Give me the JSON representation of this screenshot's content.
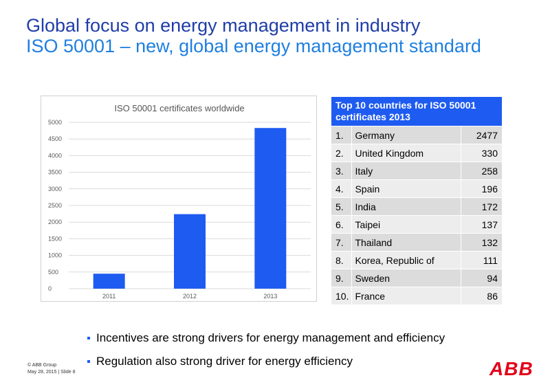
{
  "slide": {
    "title_line1": "Global focus on energy management in industry",
    "title_line2": "ISO 50001 – new, global energy management standard",
    "bullets": [
      "Incentives are strong drivers for energy management and efficiency",
      "Regulation also strong driver for energy efficiency"
    ],
    "footer_copyright": "© ABB Group",
    "footer_date": "May 28, 2015 | Slide 8",
    "logo_text": "ABB"
  },
  "colors": {
    "title_dark": "#1F3DA8",
    "title_light": "#1F7FE0",
    "bar": "#1E5BF0",
    "table_header": "#1E5BF0",
    "logo": "#E2001A"
  },
  "table": {
    "header": "Top 10 countries for ISO 50001 certificates 2013",
    "rows": [
      {
        "rank": "1.",
        "country": "Germany",
        "value": "2477"
      },
      {
        "rank": "2.",
        "country": "United Kingdom",
        "value": "330"
      },
      {
        "rank": "3.",
        "country": "Italy",
        "value": "258"
      },
      {
        "rank": "4.",
        "country": "Spain",
        "value": "196"
      },
      {
        "rank": "5.",
        "country": "India",
        "value": "172"
      },
      {
        "rank": "6.",
        "country": "Taipei",
        "value": "137"
      },
      {
        "rank": "7.",
        "country": "Thailand",
        "value": "132"
      },
      {
        "rank": "8.",
        "country": "Korea, Republic of",
        "value": "111"
      },
      {
        "rank": "9.",
        "country": "Sweden",
        "value": "94"
      },
      {
        "rank": "10.",
        "country": "France",
        "value": "86"
      }
    ]
  },
  "chart_data": {
    "type": "bar",
    "title": "ISO 50001 certificates worldwide",
    "categories": [
      "2011",
      "2012",
      "2013"
    ],
    "values": [
      450,
      2240,
      4830
    ],
    "ylim": [
      0,
      5000
    ],
    "yticks": [
      0,
      500,
      1000,
      1500,
      2000,
      2500,
      3000,
      3500,
      4000,
      4500,
      5000
    ],
    "xlabel": "",
    "ylabel": "",
    "grid": true,
    "legend": "none"
  }
}
